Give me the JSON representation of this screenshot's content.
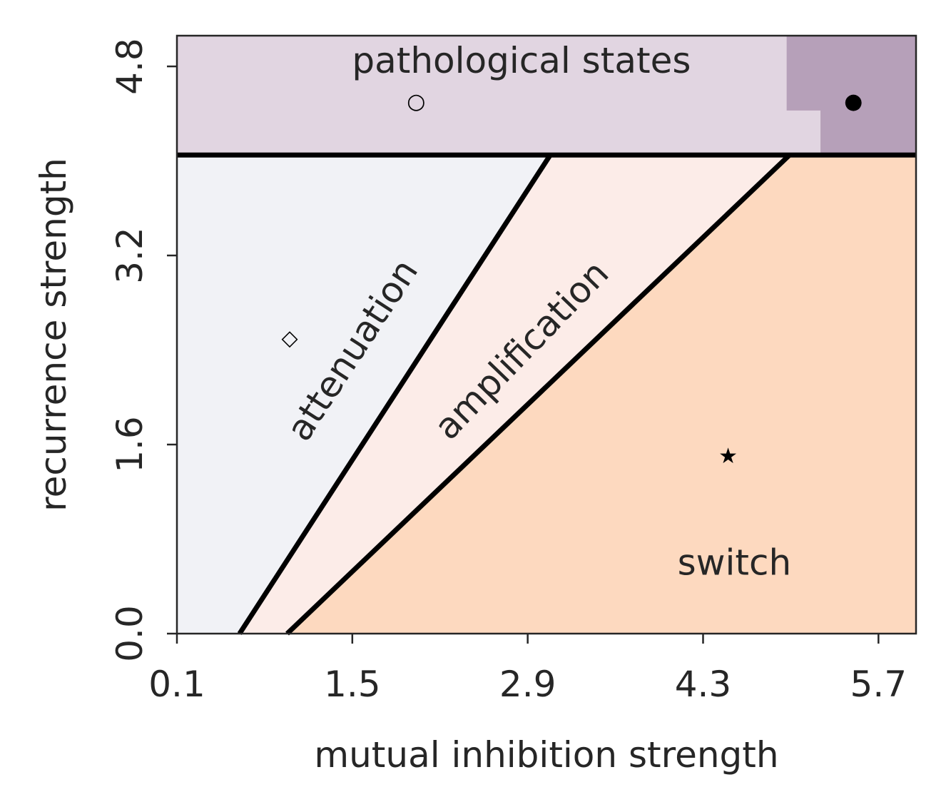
{
  "chart_data": {
    "type": "phase-diagram",
    "xlabel": "mutual inhibition strength",
    "ylabel": "recurrence strength",
    "xlim": [
      0.1,
      6.0
    ],
    "ylim": [
      0.0,
      5.06
    ],
    "xticks": [
      "0.1",
      "1.5",
      "2.9",
      "4.3",
      "5.7"
    ],
    "yticks": [
      "0.0",
      "1.6",
      "3.2",
      "4.8"
    ],
    "grid": false,
    "pathological_threshold": 4.05,
    "regions": [
      {
        "name": "attenuation",
        "label": "attenuation",
        "color": "#f1f2f6",
        "polygon": [
          [
            0.1,
            0.0
          ],
          [
            0.6,
            0.0
          ],
          [
            3.08,
            4.05
          ],
          [
            0.1,
            4.05
          ]
        ]
      },
      {
        "name": "amplification",
        "label": "amplification",
        "color": "#fcece8",
        "polygon": [
          [
            0.6,
            0.0
          ],
          [
            0.98,
            0.0
          ],
          [
            4.99,
            4.05
          ],
          [
            3.08,
            4.05
          ]
        ]
      },
      {
        "name": "switch",
        "label": "switch",
        "color": "#fdd9bf",
        "polygon": [
          [
            0.98,
            0.0
          ],
          [
            6.0,
            0.0
          ],
          [
            6.0,
            4.05
          ],
          [
            4.99,
            4.05
          ]
        ]
      },
      {
        "name": "pathological",
        "label": "pathological states",
        "color": "#e1d5e1",
        "polygon": [
          [
            0.1,
            4.05
          ],
          [
            6.0,
            4.05
          ],
          [
            6.0,
            5.06
          ],
          [
            0.1,
            5.06
          ]
        ]
      },
      {
        "name": "pathological-dark",
        "label": "",
        "color": "#b6a0b9",
        "polygon": [
          [
            4.97,
            5.06
          ],
          [
            6.0,
            5.06
          ],
          [
            6.0,
            4.05
          ],
          [
            5.24,
            4.05
          ],
          [
            5.24,
            4.43
          ],
          [
            4.97,
            4.43
          ]
        ]
      }
    ],
    "boundaries": [
      {
        "name": "attenuation-amplification",
        "points": [
          [
            0.6,
            0.0
          ],
          [
            3.08,
            4.05
          ]
        ]
      },
      {
        "name": "amplification-switch",
        "points": [
          [
            0.98,
            0.0
          ],
          [
            4.99,
            4.05
          ]
        ]
      },
      {
        "name": "pathological-threshold",
        "points": [
          [
            0.1,
            4.05
          ],
          [
            6.0,
            4.05
          ]
        ]
      }
    ],
    "markers": [
      {
        "name": "open-circle",
        "symbol": "○",
        "x": 2.01,
        "y": 4.5
      },
      {
        "name": "filled-circle",
        "symbol": "●",
        "x": 5.5,
        "y": 4.5
      },
      {
        "name": "diamond",
        "symbol": "◇",
        "x": 1.0,
        "y": 2.5
      },
      {
        "name": "star",
        "symbol": "★",
        "x": 4.5,
        "y": 1.5
      }
    ],
    "annotations": [
      {
        "text": "pathological states",
        "x": 2.85,
        "y": 4.85,
        "rotation": 0
      },
      {
        "text": "attenuation",
        "x": 1.5,
        "y": 2.4,
        "rotation": -57
      },
      {
        "text": "amplification",
        "x": 2.85,
        "y": 2.4,
        "rotation": -46
      },
      {
        "text": "switch",
        "x": 4.55,
        "y": 0.6,
        "rotation": 0
      }
    ]
  }
}
